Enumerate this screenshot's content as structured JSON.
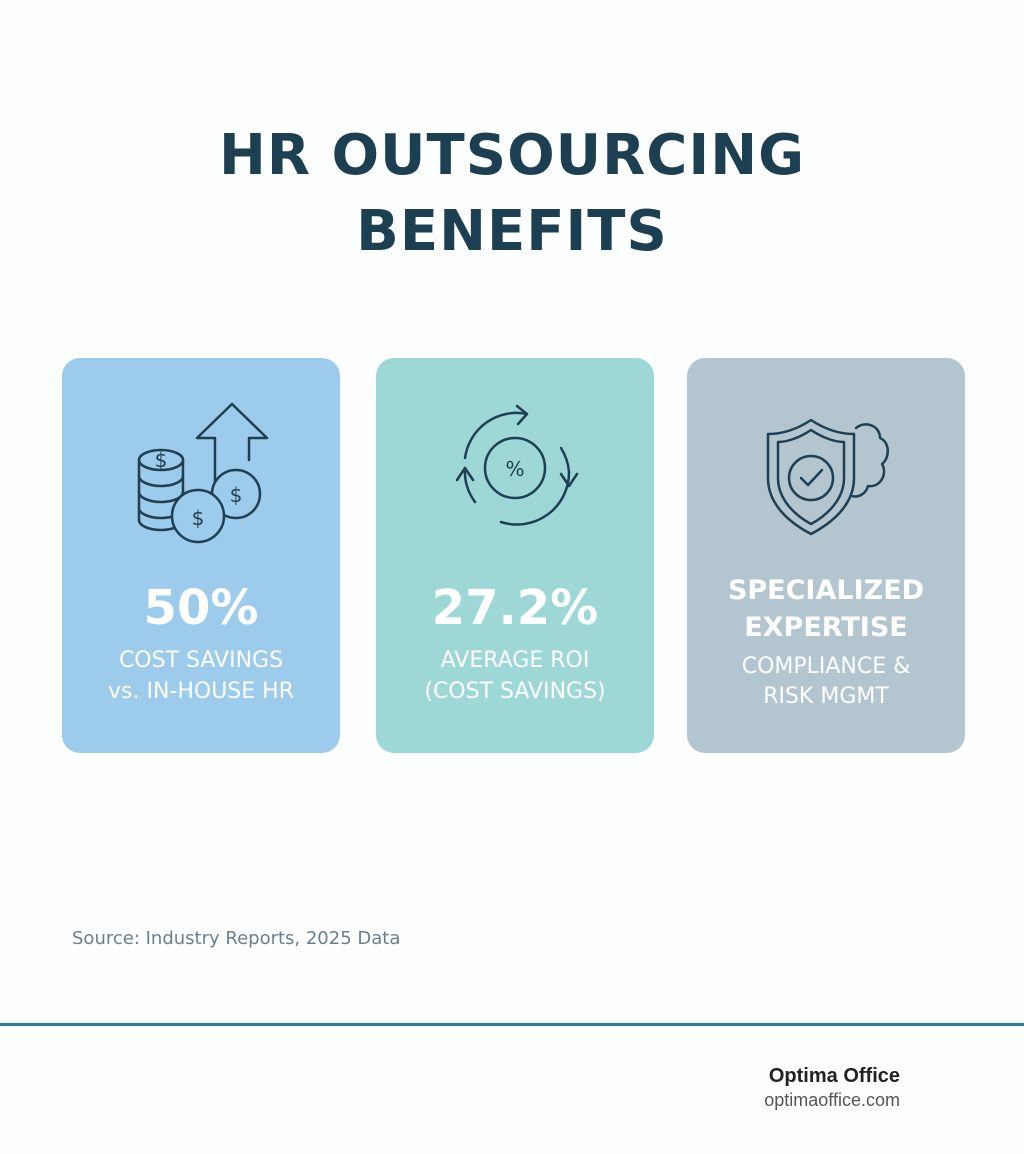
{
  "header": {
    "title": "HR OUTSOURCING BENEFITS"
  },
  "cards": [
    {
      "stat": "50%",
      "lines": [
        "COST SAVINGS",
        "vs. IN-HOUSE HR"
      ]
    },
    {
      "stat": "27.2%",
      "lines": [
        "AVERAGE ROI",
        "(COST SAVINGS)"
      ]
    },
    {
      "heading": "SPECIALIZED EXPERTISE",
      "lines": [
        "COMPLIANCE &",
        "RISK MGMT"
      ]
    }
  ],
  "source": "Source: Industry Reports, 2025 Data",
  "footer": {
    "brand": "Optima Office",
    "url": "optimaoffice.com"
  }
}
